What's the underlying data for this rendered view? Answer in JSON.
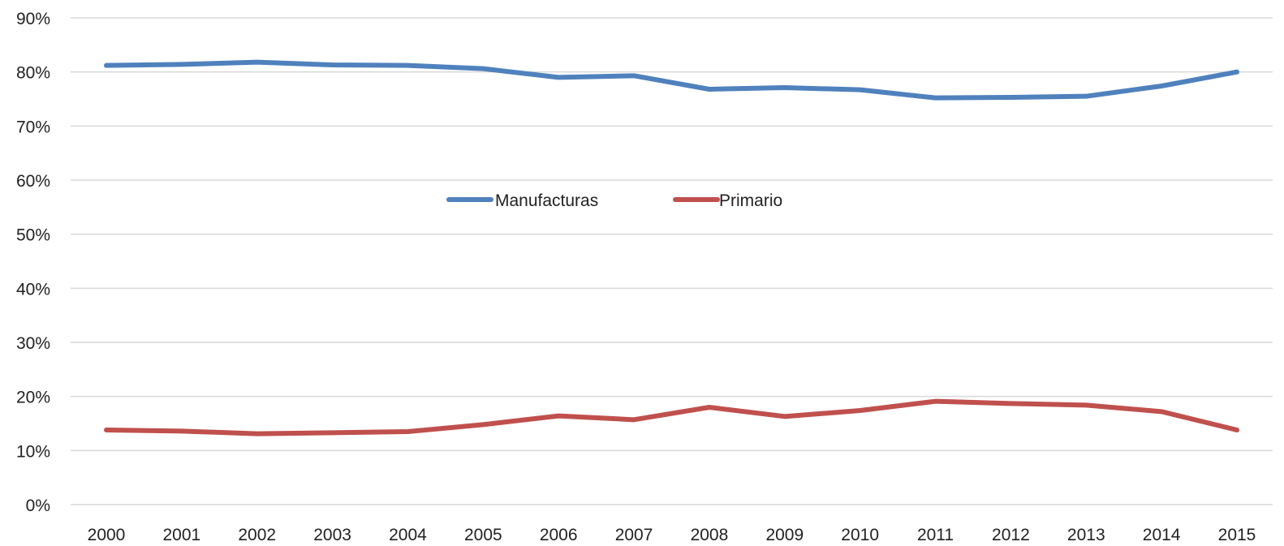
{
  "chart_data": {
    "type": "line",
    "title": "",
    "xlabel": "",
    "ylabel": "",
    "categories": [
      "2000",
      "2001",
      "2002",
      "2003",
      "2004",
      "2005",
      "2006",
      "2007",
      "2008",
      "2009",
      "2010",
      "2011",
      "2012",
      "2013",
      "2014",
      "2015"
    ],
    "y_ticks": [
      "0%",
      "10%",
      "20%",
      "30%",
      "40%",
      "50%",
      "60%",
      "70%",
      "80%",
      "90%"
    ],
    "ylim": [
      0,
      90
    ],
    "grid": true,
    "legend_position": "center",
    "series": [
      {
        "name": "Manufacturas",
        "color": "#4f81bd",
        "values": [
          81.2,
          81.4,
          81.8,
          81.3,
          81.2,
          80.6,
          79.0,
          79.3,
          76.8,
          77.1,
          76.7,
          75.2,
          75.3,
          75.5,
          77.4,
          80.0
        ]
      },
      {
        "name": "Primario",
        "color": "#c0504d",
        "values": [
          13.8,
          13.6,
          13.1,
          13.3,
          13.5,
          14.8,
          16.4,
          15.7,
          18.0,
          16.3,
          17.4,
          19.1,
          18.7,
          18.4,
          17.2,
          13.8
        ]
      }
    ]
  }
}
